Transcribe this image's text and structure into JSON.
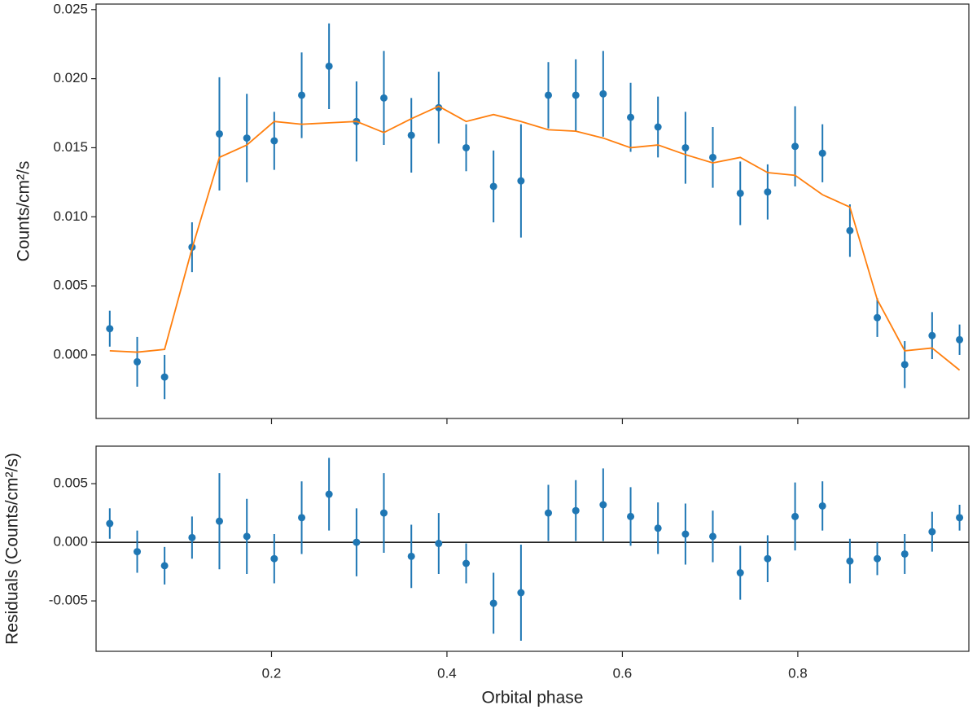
{
  "chart_data": [
    {
      "type": "errorbar",
      "ylabel": "Counts/cm²/s",
      "x": [
        0.0156,
        0.0469,
        0.0781,
        0.1094,
        0.1406,
        0.1719,
        0.2031,
        0.2344,
        0.2656,
        0.2969,
        0.3281,
        0.3594,
        0.3906,
        0.4219,
        0.4531,
        0.4844,
        0.5156,
        0.5469,
        0.5781,
        0.6094,
        0.6406,
        0.6719,
        0.7031,
        0.7344,
        0.7656,
        0.7969,
        0.8281,
        0.8594,
        0.8906,
        0.9219,
        0.9531,
        0.9844
      ],
      "series": [
        {
          "type": "errorbar",
          "color": "#1f77b4",
          "values": [
            0.0019,
            -0.0005,
            -0.0016,
            0.0078,
            0.016,
            0.0157,
            0.0155,
            0.0188,
            0.0209,
            0.0169,
            0.0186,
            0.0159,
            0.0179,
            0.015,
            0.0122,
            0.0126,
            0.0188,
            0.0188,
            0.0189,
            0.0172,
            0.0165,
            0.015,
            0.0143,
            0.0117,
            0.0118,
            0.0151,
            0.0146,
            0.009,
            0.0027,
            -0.0007,
            0.0014,
            0.0011
          ],
          "errors": [
            0.0013,
            0.0018,
            0.0016,
            0.0018,
            0.0041,
            0.0032,
            0.0021,
            0.0031,
            0.0031,
            0.0029,
            0.0034,
            0.0027,
            0.0026,
            0.0017,
            0.0026,
            0.0041,
            0.0024,
            0.0026,
            0.0031,
            0.0025,
            0.0022,
            0.0026,
            0.0022,
            0.0023,
            0.002,
            0.0029,
            0.0021,
            0.0019,
            0.0014,
            0.0017,
            0.0017,
            0.0011
          ]
        },
        {
          "type": "line",
          "color": "#ff7f0e",
          "values": [
            0.0003,
            0.0002,
            0.0004,
            0.0077,
            0.0143,
            0.0152,
            0.0169,
            0.0167,
            0.0168,
            0.0169,
            0.0161,
            0.0171,
            0.018,
            0.0169,
            0.0174,
            0.0169,
            0.0163,
            0.0162,
            0.0157,
            0.015,
            0.0152,
            0.0145,
            0.0139,
            0.0143,
            0.0132,
            0.013,
            0.0116,
            0.0107,
            0.004,
            0.0003,
            0.0005,
            -0.0011
          ]
        }
      ],
      "xlim": [
        0,
        0.995
      ],
      "xticks": [
        0.2,
        0.4,
        0.6,
        0.8
      ],
      "ylim": [
        -0.0046,
        0.0254
      ],
      "yticks": [
        {
          "value": 0,
          "label": "0.000"
        },
        {
          "value": 0.005,
          "label": "0.005"
        },
        {
          "value": 0.01,
          "label": "0.010"
        },
        {
          "value": 0.015,
          "label": "0.015"
        },
        {
          "value": 0.02,
          "label": "0.020"
        },
        {
          "value": 0.025,
          "label": "0.025"
        }
      ]
    },
    {
      "type": "errorbar",
      "ylabel": "Residuals (Counts/cm²/s)",
      "xlabel": "Orbital phase",
      "x": [
        0.0156,
        0.0469,
        0.0781,
        0.1094,
        0.1406,
        0.1719,
        0.2031,
        0.2344,
        0.2656,
        0.2969,
        0.3281,
        0.3594,
        0.3906,
        0.4219,
        0.4531,
        0.4844,
        0.5156,
        0.5469,
        0.5781,
        0.6094,
        0.6406,
        0.6719,
        0.7031,
        0.7344,
        0.7656,
        0.7969,
        0.8281,
        0.8594,
        0.8906,
        0.9219,
        0.9531,
        0.9844
      ],
      "series": [
        {
          "type": "errorbar",
          "color": "#1f77b4",
          "values": [
            0.0016,
            -0.0008,
            -0.002,
            0.0004,
            0.0018,
            0.0005,
            -0.0014,
            0.0021,
            0.0041,
            0.0,
            0.0025,
            -0.0012,
            -0.0001,
            -0.0018,
            -0.0052,
            -0.0043,
            0.0025,
            0.0027,
            0.0032,
            0.0022,
            0.0012,
            0.0007,
            0.0005,
            -0.0026,
            -0.0014,
            0.0022,
            0.0031,
            -0.0016,
            -0.0014,
            -0.001,
            0.0009,
            0.0021
          ],
          "errors": [
            0.0013,
            0.0018,
            0.0016,
            0.0018,
            0.0041,
            0.0032,
            0.0021,
            0.0031,
            0.0031,
            0.0029,
            0.0034,
            0.0027,
            0.0026,
            0.0017,
            0.0026,
            0.0041,
            0.0024,
            0.0026,
            0.0031,
            0.0025,
            0.0022,
            0.0026,
            0.0022,
            0.0023,
            0.002,
            0.0029,
            0.0021,
            0.0019,
            0.0014,
            0.0017,
            0.0017,
            0.0011
          ]
        }
      ],
      "reference_line": 0,
      "xlim": [
        0,
        0.995
      ],
      "xticks": [
        0.2,
        0.4,
        0.6,
        0.8
      ],
      "ylim": [
        -0.0093,
        0.0082
      ],
      "yticks": [
        {
          "value": -0.005,
          "label": "-0.005"
        },
        {
          "value": 0,
          "label": "0.000"
        },
        {
          "value": 0.005,
          "label": "0.005"
        }
      ]
    }
  ]
}
